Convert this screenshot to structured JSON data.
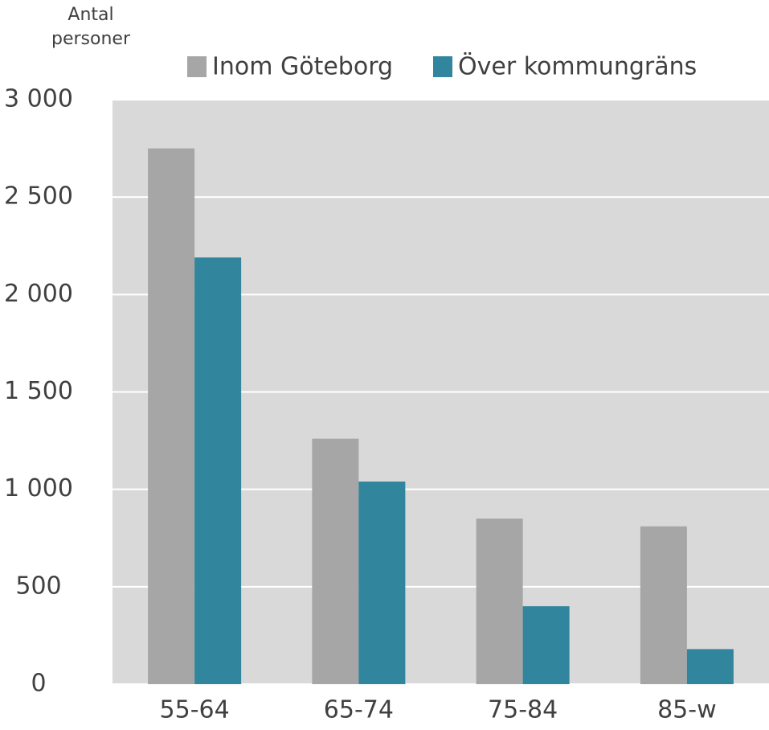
{
  "chart_data": {
    "type": "bar",
    "y_label": "Antal personer",
    "categories": [
      "55-64",
      "65-74",
      "75-84",
      "85-w"
    ],
    "series": [
      {
        "name": "Inom Göteborg",
        "color": "#a6a6a6",
        "values": [
          2750,
          1260,
          850,
          810
        ]
      },
      {
        "name": "Över kommungräns",
        "color": "#31859c",
        "values": [
          2190,
          1040,
          400,
          180
        ]
      }
    ],
    "ylim": [
      0,
      3000
    ],
    "yticks": [
      0,
      500,
      {
        "value": 1000,
        "label": "1 000"
      },
      {
        "value": 1500,
        "label": "1 500"
      },
      {
        "value": 2000,
        "label": "2 000"
      },
      {
        "value": 2500,
        "label": "2 500"
      },
      {
        "value": 3000,
        "label": "3 000"
      }
    ],
    "grid": true,
    "plot_background": "#d9d9d9",
    "legend": "top"
  }
}
